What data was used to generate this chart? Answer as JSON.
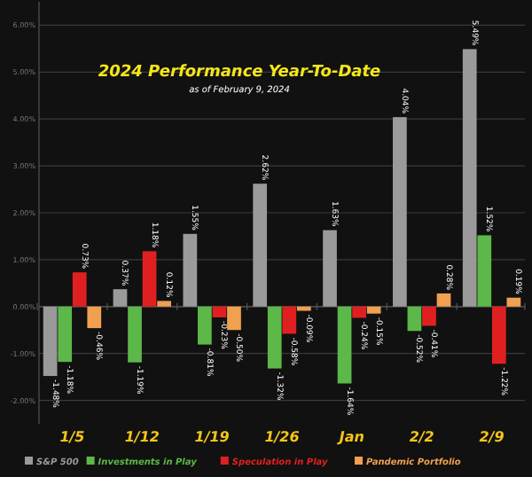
{
  "chart_data": {
    "type": "bar",
    "title": "2024 Performance Year-To-Date",
    "subtitle": "as of February 9, 2024",
    "categories": [
      "1/5",
      "1/12",
      "1/19",
      "1/26",
      "Jan",
      "2/2",
      "2/9"
    ],
    "series": [
      {
        "name": "S&P 500",
        "color": "#9a9a9a",
        "values": [
          -1.48,
          0.37,
          1.55,
          2.62,
          1.63,
          4.04,
          5.49
        ],
        "value_labels": [
          "-1.48%",
          "0.37%",
          "1.55%",
          "2.62%",
          "1.63%",
          "4.04%",
          "5.49%"
        ]
      },
      {
        "name": "Investments in Play",
        "color": "#5cb848",
        "values": [
          -1.18,
          -1.19,
          -0.81,
          -1.32,
          -1.64,
          -0.52,
          1.52
        ],
        "value_labels": [
          "-1.18%",
          "-1.19%",
          "-0.81%",
          "-1.32%",
          "-1.64%",
          "-0.52%",
          "1.52%"
        ]
      },
      {
        "name": "Speculation in Play",
        "color": "#e02020",
        "values": [
          0.73,
          1.18,
          -0.23,
          -0.58,
          -0.24,
          -0.41,
          -1.22
        ],
        "value_labels": [
          "0.73%",
          "1.18%",
          "-0.23%",
          "-0.58%",
          "-0.24%",
          "-0.41%",
          "-1.22%"
        ]
      },
      {
        "name": "Pandemic Portfolio",
        "color": "#f0a050",
        "values": [
          -0.46,
          0.12,
          -0.5,
          -0.09,
          -0.15,
          0.28,
          0.19
        ],
        "value_labels": [
          "-0.46%",
          "0.12%",
          "-0.50%",
          "-0.09%",
          "-0.15%",
          "0.28%",
          "0.19%"
        ]
      }
    ],
    "ylim": [
      -2.5,
      6.5
    ],
    "yticks": [
      {
        "value": -2,
        "label": "-2.00%"
      },
      {
        "value": -1,
        "label": "-1.00%"
      },
      {
        "value": 0,
        "label": "0.00%"
      },
      {
        "value": 1,
        "label": "1.00%"
      },
      {
        "value": 2,
        "label": "2.00%"
      },
      {
        "value": 3,
        "label": "3.00%"
      },
      {
        "value": 4,
        "label": "4.00%"
      },
      {
        "value": 5,
        "label": "5.00%"
      },
      {
        "value": 6,
        "label": "6.00%"
      }
    ],
    "grid": "y",
    "legend": "bottom"
  }
}
